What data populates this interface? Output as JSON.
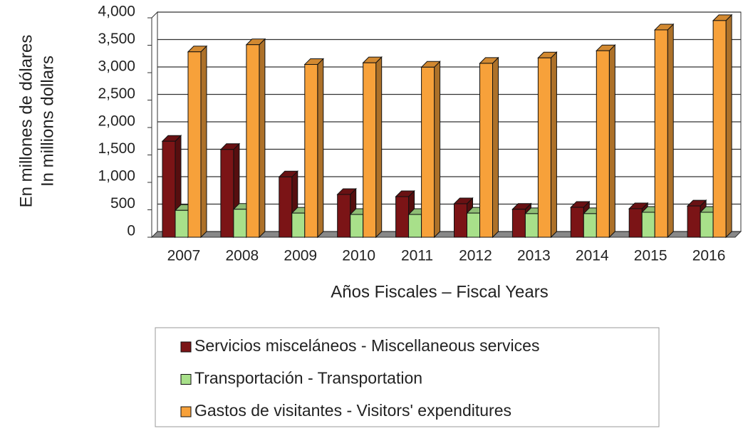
{
  "chart_data": {
    "type": "bar3d",
    "y_axis_label_lines": [
      "En millones de dólares",
      "In millions dollars"
    ],
    "x_axis_label": "Años Fiscales – Fiscal Years",
    "categories": [
      "2007",
      "2008",
      "2009",
      "2010",
      "2011",
      "2012",
      "2013",
      "2014",
      "2015",
      "2016"
    ],
    "series": [
      {
        "name": "Servicios misceláneos - Miscellaneous services",
        "color": "#7b1416",
        "values": [
          1750,
          1600,
          1100,
          780,
          740,
          610,
          510,
          545,
          520,
          570
        ]
      },
      {
        "name": "Transportación - Transportation",
        "color": "#a8e08a",
        "values": [
          490,
          510,
          440,
          415,
          415,
          440,
          430,
          430,
          455,
          455
        ]
      },
      {
        "name": "Gastos de visitantes - Visitors' expenditures",
        "color": "#f7a13a",
        "values": [
          3380,
          3510,
          3150,
          3180,
          3100,
          3170,
          3270,
          3400,
          3780,
          3950
        ]
      }
    ],
    "ylim": [
      0,
      4000
    ],
    "yticks": [
      0,
      {
        "value": 500,
        "label": "500"
      },
      {
        "value": 1000,
        "label": "1,000"
      },
      {
        "value": 1500,
        "label": "1,500"
      },
      {
        "value": 2000,
        "label": "2,000"
      },
      {
        "value": 2500,
        "label": "2,500"
      },
      {
        "value": 3000,
        "label": "3,000"
      },
      {
        "value": 3500,
        "label": "3,500"
      },
      {
        "value": 4000,
        "label": "4,000"
      }
    ],
    "grid": true
  }
}
